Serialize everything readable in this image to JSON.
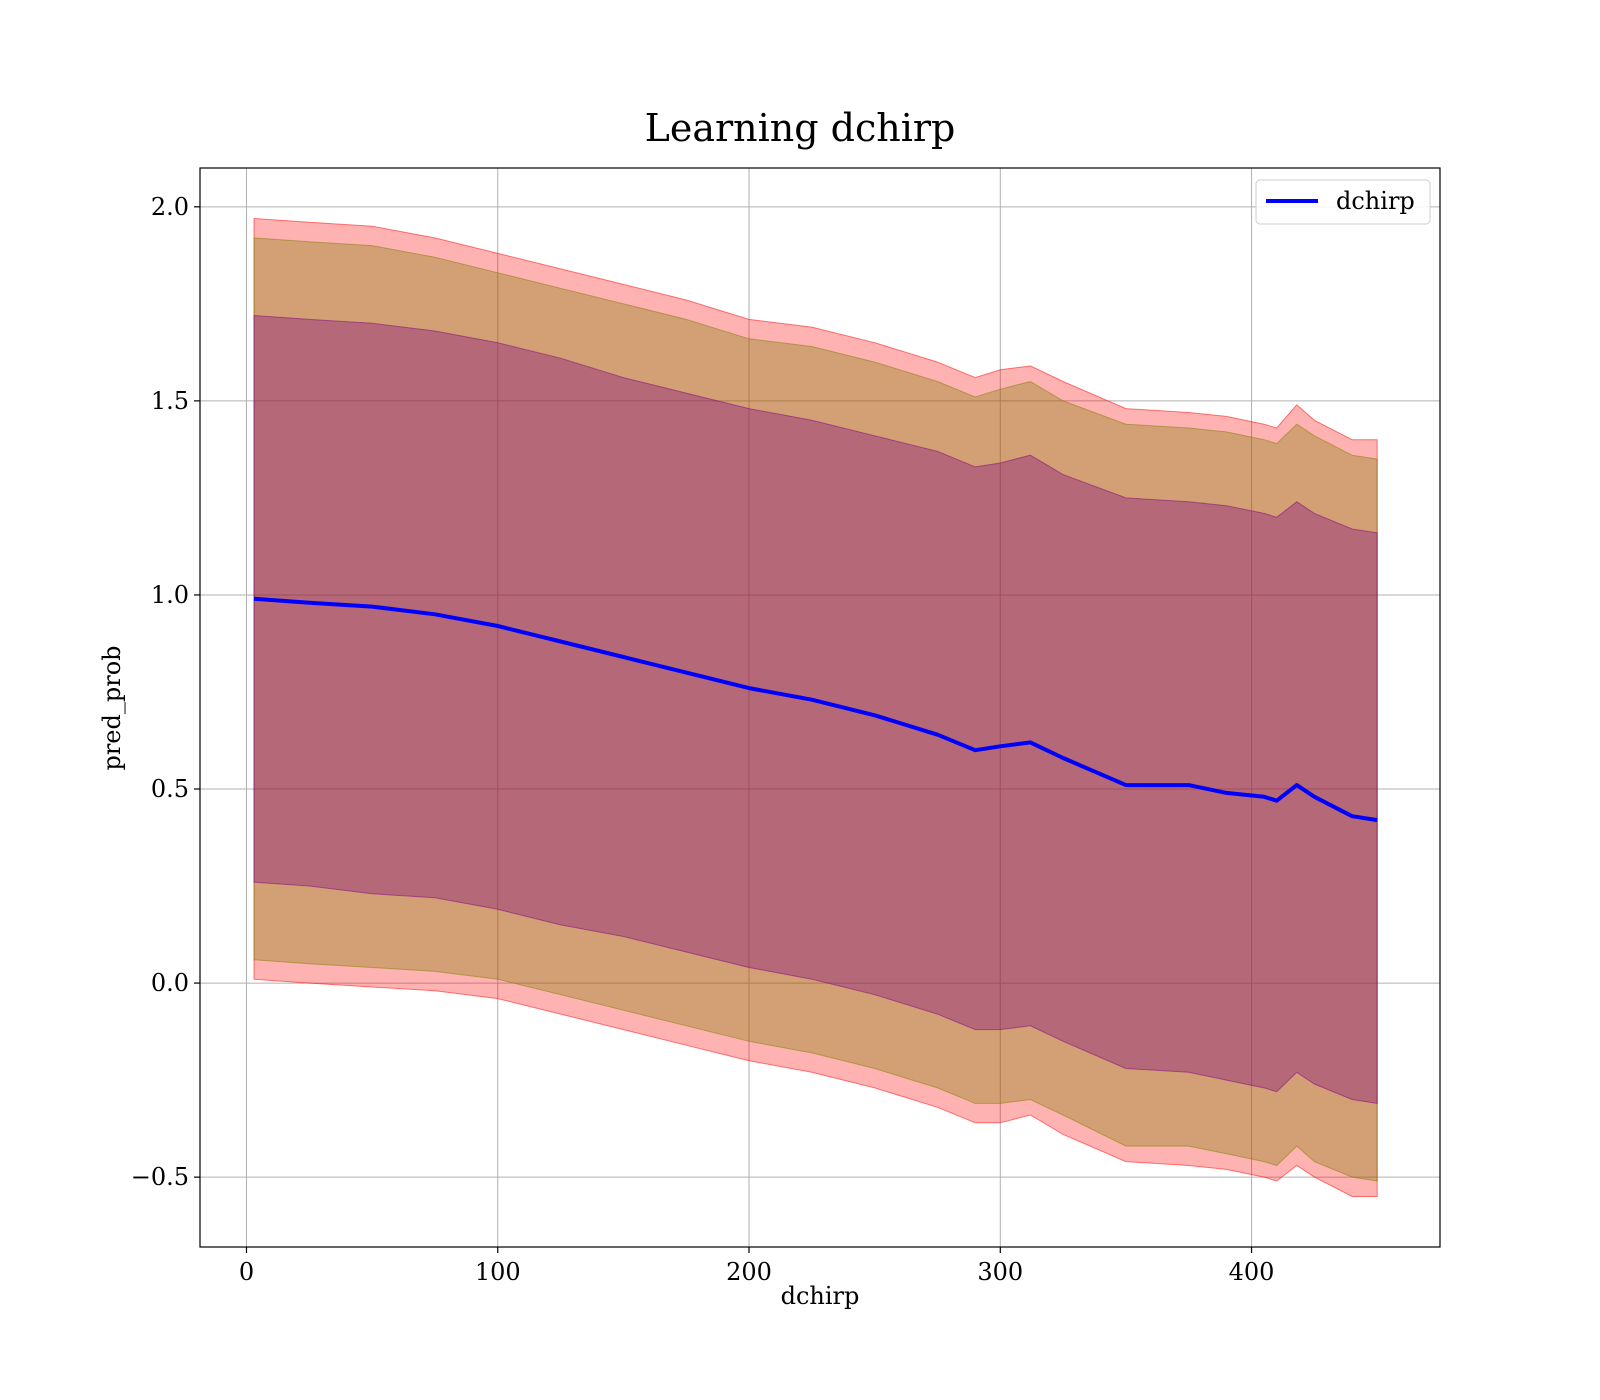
{
  "chart_data": {
    "type": "area",
    "title": "Learning dchirp",
    "xlabel": "dchirp",
    "ylabel": "pred_prob",
    "xlim": [
      -18.5,
      475
    ],
    "ylim": [
      -0.68,
      2.1
    ],
    "x_ticks": [
      0,
      100,
      200,
      300,
      400
    ],
    "y_ticks": [
      -0.5,
      0.0,
      0.5,
      1.0,
      1.5,
      2.0
    ],
    "x_tick_labels": [
      "0",
      "100",
      "200",
      "300",
      "400"
    ],
    "y_tick_labels": [
      "−0.5",
      "0.0",
      "0.5",
      "1.0",
      "1.5",
      "2.0"
    ],
    "grid": true,
    "legend_position": "upper-right",
    "x": [
      3,
      25,
      50,
      75,
      100,
      125,
      150,
      175,
      200,
      225,
      250,
      275,
      290,
      300,
      312,
      325,
      350,
      375,
      390,
      405,
      410,
      418,
      425,
      440,
      450
    ],
    "series": [
      {
        "name": "dchirp",
        "role": "mean_line",
        "color": "#0000ff",
        "values": [
          0.99,
          0.98,
          0.97,
          0.95,
          0.92,
          0.88,
          0.84,
          0.8,
          0.76,
          0.73,
          0.69,
          0.64,
          0.6,
          0.61,
          0.62,
          0.58,
          0.51,
          0.51,
          0.49,
          0.48,
          0.47,
          0.51,
          0.48,
          0.43,
          0.42
        ]
      }
    ],
    "bands": [
      {
        "label_text": "",
        "role": "outer_band",
        "color": "#ff0000",
        "opacity": 0.3,
        "upper": [
          1.97,
          1.96,
          1.95,
          1.92,
          1.88,
          1.84,
          1.8,
          1.76,
          1.71,
          1.69,
          1.65,
          1.6,
          1.56,
          1.58,
          1.59,
          1.55,
          1.48,
          1.47,
          1.46,
          1.44,
          1.43,
          1.49,
          1.45,
          1.4,
          1.4
        ],
        "lower": [
          0.01,
          0.0,
          -0.01,
          -0.02,
          -0.04,
          -0.08,
          -0.12,
          -0.16,
          -0.2,
          -0.23,
          -0.27,
          -0.32,
          -0.36,
          -0.36,
          -0.34,
          -0.39,
          -0.46,
          -0.47,
          -0.48,
          -0.5,
          -0.51,
          -0.47,
          -0.5,
          -0.55,
          -0.55
        ]
      },
      {
        "label_text": "",
        "role": "middle_band",
        "color": "#7f7f00",
        "opacity": 0.35,
        "upper": [
          1.92,
          1.91,
          1.9,
          1.87,
          1.83,
          1.79,
          1.75,
          1.71,
          1.66,
          1.64,
          1.6,
          1.55,
          1.51,
          1.53,
          1.55,
          1.5,
          1.44,
          1.43,
          1.42,
          1.4,
          1.39,
          1.44,
          1.41,
          1.36,
          1.35
        ],
        "lower": [
          0.06,
          0.05,
          0.04,
          0.03,
          0.01,
          -0.03,
          -0.07,
          -0.11,
          -0.15,
          -0.18,
          -0.22,
          -0.27,
          -0.31,
          -0.31,
          -0.3,
          -0.34,
          -0.42,
          -0.42,
          -0.44,
          -0.46,
          -0.47,
          -0.42,
          -0.46,
          -0.5,
          -0.51
        ]
      },
      {
        "label_text": "",
        "role": "inner_band",
        "color": "#800080",
        "opacity": 0.35,
        "upper": [
          1.72,
          1.71,
          1.7,
          1.68,
          1.65,
          1.61,
          1.56,
          1.52,
          1.48,
          1.45,
          1.41,
          1.37,
          1.33,
          1.34,
          1.36,
          1.31,
          1.25,
          1.24,
          1.23,
          1.21,
          1.2,
          1.24,
          1.21,
          1.17,
          1.16
        ],
        "lower": [
          0.26,
          0.25,
          0.23,
          0.22,
          0.19,
          0.15,
          0.12,
          0.08,
          0.04,
          0.01,
          -0.03,
          -0.08,
          -0.12,
          -0.12,
          -0.11,
          -0.15,
          -0.22,
          -0.23,
          -0.25,
          -0.27,
          -0.28,
          -0.23,
          -0.26,
          -0.3,
          -0.31
        ]
      }
    ]
  }
}
